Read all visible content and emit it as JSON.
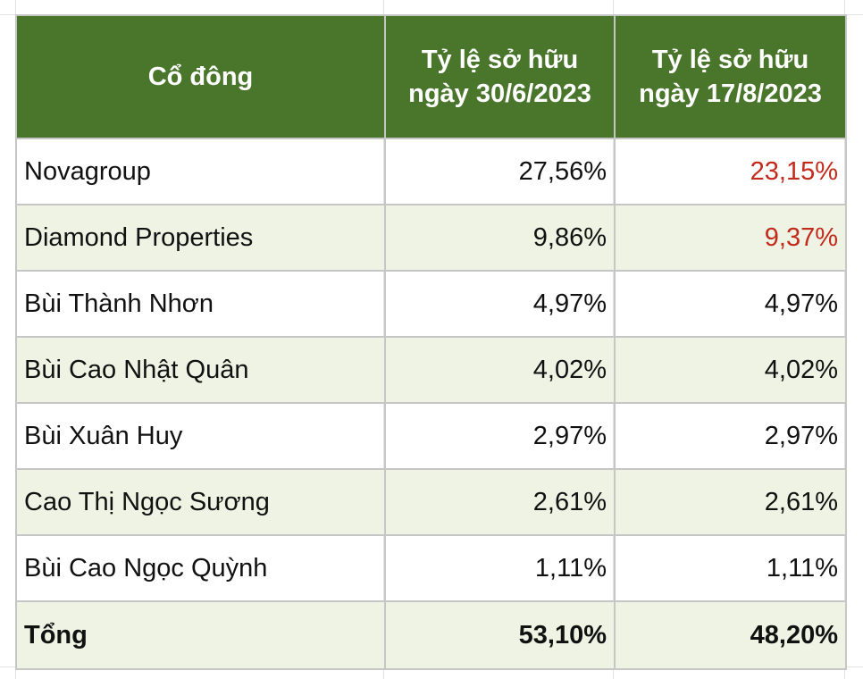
{
  "table": {
    "headers": {
      "shareholder": "Cổ đông",
      "ratio_a_line1": "Tỷ lệ sở hữu",
      "ratio_a_line2": "ngày 30/6/2023",
      "ratio_b_line1": "Tỷ lệ sở hữu",
      "ratio_b_line2": "ngày 17/8/2023"
    },
    "rows": [
      {
        "name": "Novagroup",
        "ratio_0630": "27,56%",
        "ratio_0817": "23,15%"
      },
      {
        "name": "Diamond Properties",
        "ratio_0630": "9,86%",
        "ratio_0817": "9,37%"
      },
      {
        "name": "Bùi Thành Nhơn",
        "ratio_0630": "4,97%",
        "ratio_0817": "4,97%"
      },
      {
        "name": "Bùi Cao Nhật Quân",
        "ratio_0630": "4,02%",
        "ratio_0817": "4,02%"
      },
      {
        "name": "Bùi Xuân Huy",
        "ratio_0630": "2,97%",
        "ratio_0817": "2,97%"
      },
      {
        "name": "Cao Thị Ngọc Sương",
        "ratio_0630": "2,61%",
        "ratio_0817": "2,61%"
      },
      {
        "name": "Bùi Cao Ngọc Quỳnh",
        "ratio_0630": "1,11%",
        "ratio_0817": "1,11%"
      }
    ],
    "total": {
      "label": "Tổng",
      "ratio_0630": "53,10%",
      "ratio_0817": "48,20%"
    }
  },
  "colors": {
    "header_bg": "#4a762c",
    "header_text": "#ffffff",
    "alt_row_bg": "#eef3e4",
    "decrease_text": "#c22a1c"
  }
}
